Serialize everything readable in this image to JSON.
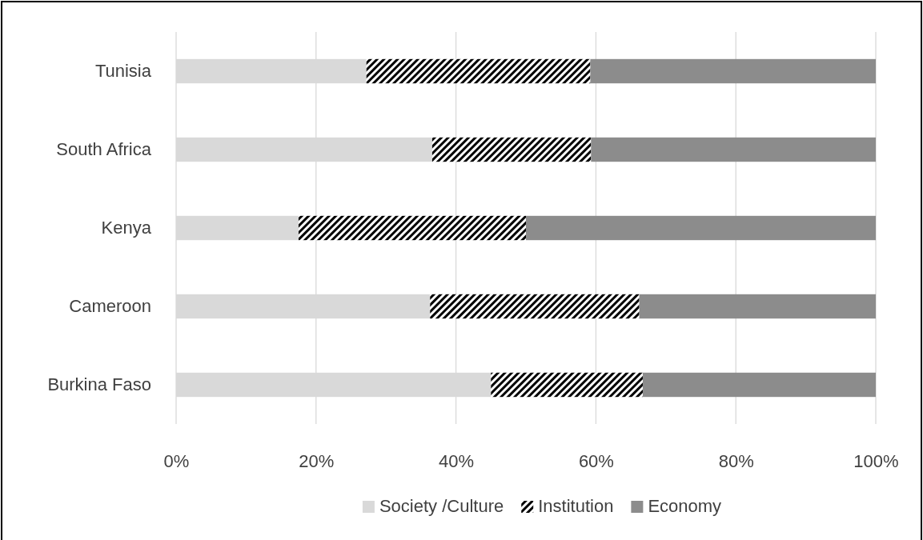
{
  "chart_data": {
    "type": "bar",
    "orientation": "horizontal",
    "stacked": true,
    "categories": [
      "Tunisia",
      "South Africa",
      "Kenya",
      "Cameroon",
      "Burkina Faso"
    ],
    "series": [
      {
        "name": "Society /Culture",
        "color": "#d9d9d9",
        "values": [
          27.2,
          36.6,
          17.5,
          36.3,
          45.0
        ]
      },
      {
        "name": "Institution",
        "color": "#000000",
        "values": [
          32.0,
          22.7,
          32.5,
          29.9,
          21.7
        ]
      },
      {
        "name": "Economy",
        "color": "#8c8c8c",
        "values": [
          40.8,
          40.7,
          50.0,
          33.8,
          33.3
        ]
      }
    ],
    "xlim": [
      0,
      100
    ],
    "xticks": [
      {
        "value": 0,
        "label": "0%"
      },
      {
        "value": 20,
        "label": "20%"
      },
      {
        "value": 40,
        "label": "40%"
      },
      {
        "value": 60,
        "label": "60%"
      },
      {
        "value": 80,
        "label": "80%"
      },
      {
        "value": 100,
        "label": "100%"
      }
    ],
    "grid": "x",
    "legend": "bottom"
  }
}
